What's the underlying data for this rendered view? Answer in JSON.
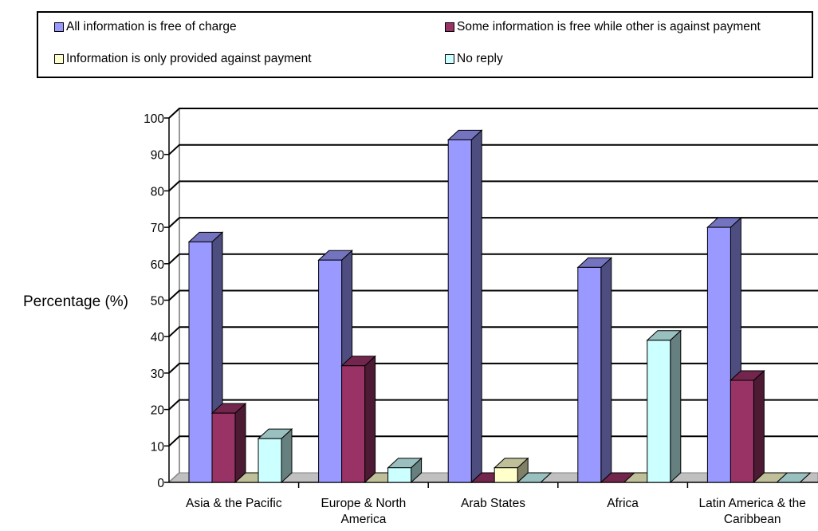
{
  "chart_data": {
    "type": "bar",
    "categories": [
      [
        "Asia & the Pacific"
      ],
      [
        "Europe & North",
        "America"
      ],
      [
        "Arab States"
      ],
      [
        "Africa"
      ],
      [
        "Latin America & the",
        "Caribbean"
      ]
    ],
    "series": [
      {
        "name": "All information is free of charge",
        "color": "#9999ff",
        "values": [
          66,
          61,
          94,
          59,
          70
        ]
      },
      {
        "name": "Some information is free while other is against payment",
        "color": "#993366",
        "values": [
          19,
          32,
          0,
          0,
          28
        ]
      },
      {
        "name": "Information is only provided against payment",
        "color": "#ffffcc",
        "values": [
          0,
          0,
          4,
          0,
          0
        ]
      },
      {
        "name": "No reply",
        "color": "#ccffff",
        "values": [
          12,
          4,
          0,
          39,
          0
        ]
      }
    ],
    "ylabel": "Percentage (%)",
    "ylim": [
      0,
      100
    ],
    "yticks": [
      0,
      10,
      20,
      30,
      40,
      50,
      60,
      70,
      80,
      90,
      100
    ],
    "grid": true,
    "legend_position": "top",
    "three_d": true
  }
}
